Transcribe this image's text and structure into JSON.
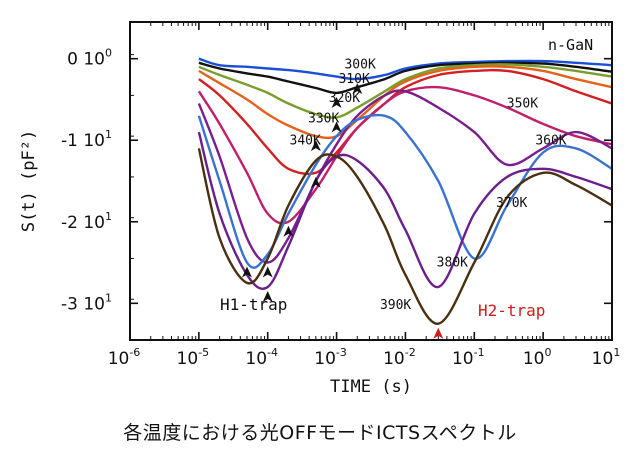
{
  "caption": "各温度における光OFFモードICTSスペクトル",
  "chart_data": {
    "type": "line",
    "xlabel": "TIME (s)",
    "ylabel": "S(t) (pF²)",
    "x_scale": "log",
    "xlim": [
      1e-06,
      10
    ],
    "ylim": [
      -3.45,
      0.45
    ],
    "grid": false,
    "x_ticks": [
      {
        "v": 1e-06,
        "base": "10",
        "exp": "-6"
      },
      {
        "v": 1e-05,
        "base": "10",
        "exp": "-5"
      },
      {
        "v": 0.0001,
        "base": "10",
        "exp": "-4"
      },
      {
        "v": 0.001,
        "base": "10",
        "exp": "-3"
      },
      {
        "v": 0.01,
        "base": "10",
        "exp": "-2"
      },
      {
        "v": 0.1,
        "base": "10",
        "exp": "-1"
      },
      {
        "v": 1,
        "base": "10",
        "exp": "0"
      },
      {
        "v": 10,
        "base": "10",
        "exp": "1"
      }
    ],
    "y_ticks": [
      {
        "v": 0,
        "text": "0 10",
        "exp": "0"
      },
      {
        "v": -1,
        "text": "-1 10",
        "exp": "1"
      },
      {
        "v": -2,
        "text": "-2 10",
        "exp": "1"
      },
      {
        "v": -3,
        "text": "-3 10",
        "exp": "1"
      }
    ],
    "annotations": {
      "material": "n-GaN",
      "trap1": {
        "text": "H1-trap",
        "color": "#111111"
      },
      "trap2": {
        "text": "H2-trap",
        "color": "#d21a1a"
      }
    },
    "series": [
      {
        "name": "300K",
        "color": "#1a4fd8",
        "label_at": [
          0.0022,
          -0.12
        ],
        "x": [
          1e-05,
          2e-05,
          5e-05,
          0.0001,
          0.0002,
          0.0005,
          0.001,
          0.002,
          0.005,
          0.01,
          0.03,
          0.1,
          0.3,
          1,
          3,
          10
        ],
        "y": [
          0.0,
          -0.08,
          -0.1,
          -0.12,
          -0.14,
          -0.18,
          -0.22,
          -0.25,
          -0.2,
          -0.12,
          -0.06,
          -0.04,
          -0.03,
          -0.03,
          -0.05,
          -0.08
        ]
      },
      {
        "name": "310K",
        "color": "#111111",
        "label_at": [
          0.0018,
          -0.3
        ],
        "x": [
          1e-05,
          2e-05,
          5e-05,
          0.0001,
          0.0002,
          0.0005,
          0.001,
          0.002,
          0.005,
          0.01,
          0.03,
          0.1,
          0.3,
          1,
          3,
          10
        ],
        "y": [
          -0.05,
          -0.12,
          -0.18,
          -0.22,
          -0.28,
          -0.36,
          -0.42,
          -0.35,
          -0.25,
          -0.15,
          -0.08,
          -0.06,
          -0.05,
          -0.06,
          -0.1,
          -0.16
        ]
      },
      {
        "name": "320K",
        "color": "#7a9e2c",
        "label_at": [
          0.0013,
          -0.53
        ],
        "x": [
          1e-05,
          2e-05,
          5e-05,
          0.0001,
          0.0002,
          0.0005,
          0.001,
          0.002,
          0.005,
          0.01,
          0.03,
          0.1,
          0.3,
          1,
          3,
          10
        ],
        "y": [
          -0.1,
          -0.2,
          -0.32,
          -0.42,
          -0.55,
          -0.68,
          -0.72,
          -0.6,
          -0.4,
          -0.25,
          -0.12,
          -0.08,
          -0.07,
          -0.1,
          -0.15,
          -0.22
        ]
      },
      {
        "name": "330K",
        "color": "#e3621a",
        "label_at": [
          0.00065,
          -0.78
        ],
        "x": [
          1e-05,
          2e-05,
          5e-05,
          0.0001,
          0.0002,
          0.0005,
          0.001,
          0.002,
          0.005,
          0.01,
          0.03,
          0.1,
          0.3,
          1,
          3,
          10
        ],
        "y": [
          -0.15,
          -0.3,
          -0.5,
          -0.68,
          -0.82,
          -0.95,
          -0.95,
          -0.75,
          -0.45,
          -0.28,
          -0.15,
          -0.1,
          -0.1,
          -0.15,
          -0.25,
          -0.35
        ]
      },
      {
        "name": "340K",
        "color": "#d42020",
        "label_at": [
          0.00035,
          -1.05
        ],
        "x": [
          1e-05,
          2e-05,
          5e-05,
          0.0001,
          0.0002,
          0.0005,
          0.001,
          0.002,
          0.005,
          0.01,
          0.03,
          0.1,
          0.3,
          1,
          3,
          10
        ],
        "y": [
          -0.25,
          -0.45,
          -0.8,
          -1.1,
          -1.35,
          -1.4,
          -1.15,
          -0.85,
          -0.55,
          -0.35,
          -0.2,
          -0.15,
          -0.15,
          -0.25,
          -0.4,
          -0.55
        ]
      },
      {
        "name": "350K",
        "color": "#c0206a",
        "label_at": [
          0.5,
          -0.6
        ],
        "x": [
          1e-05,
          2e-05,
          5e-05,
          0.0001,
          0.0002,
          0.0005,
          0.001,
          0.002,
          0.005,
          0.01,
          0.03,
          0.1,
          0.3,
          1,
          3,
          10
        ],
        "y": [
          -0.4,
          -0.8,
          -1.4,
          -1.9,
          -2.0,
          -1.6,
          -1.2,
          -0.85,
          -0.55,
          -0.4,
          -0.35,
          -0.45,
          -0.6,
          -0.8,
          -0.95,
          -1.05
        ]
      },
      {
        "name": "360K",
        "color": "#7a1e8e",
        "label_at": [
          1.3,
          -1.05
        ],
        "x": [
          1e-05,
          2e-05,
          5e-05,
          0.0001,
          0.0002,
          0.0005,
          0.001,
          0.002,
          0.005,
          0.01,
          0.03,
          0.1,
          0.3,
          1,
          3,
          10
        ],
        "y": [
          -0.55,
          -1.2,
          -2.2,
          -2.5,
          -2.2,
          -1.5,
          -1.05,
          -0.7,
          -0.45,
          -0.4,
          -0.6,
          -0.9,
          -1.3,
          -1.1,
          -0.9,
          -1.1
        ]
      },
      {
        "name": "370K",
        "color": "#3a72d0",
        "label_at": [
          0.35,
          -1.82
        ],
        "x": [
          1e-05,
          2e-05,
          5e-05,
          0.0001,
          0.0002,
          0.0005,
          0.001,
          0.002,
          0.005,
          0.01,
          0.03,
          0.1,
          0.3,
          1,
          3,
          10
        ],
        "y": [
          -0.7,
          -1.5,
          -2.5,
          -2.4,
          -1.9,
          -1.3,
          -0.95,
          -0.75,
          -0.7,
          -0.9,
          -1.5,
          -2.45,
          -1.8,
          -1.15,
          -1.1,
          -1.35
        ]
      },
      {
        "name": "380K",
        "color": "#6a1f8a",
        "label_at": [
          0.048,
          -2.55
        ],
        "x": [
          1e-05,
          2e-05,
          5e-05,
          0.0001,
          0.0002,
          0.0005,
          0.001,
          0.002,
          0.005,
          0.01,
          0.03,
          0.1,
          0.3,
          1,
          3,
          10
        ],
        "y": [
          -0.9,
          -1.9,
          -2.65,
          -2.8,
          -2.3,
          -1.5,
          -1.2,
          -1.25,
          -1.6,
          -2.1,
          -2.8,
          -1.9,
          -1.45,
          -1.35,
          -1.45,
          -1.6
        ]
      },
      {
        "name": "390K",
        "color": "#4a3010",
        "label_at": [
          0.0072,
          -3.07
        ],
        "x": [
          1e-05,
          2e-05,
          5e-05,
          0.0001,
          0.0002,
          0.0005,
          0.001,
          0.002,
          0.005,
          0.01,
          0.03,
          0.1,
          0.3,
          1,
          3,
          10
        ],
        "y": [
          -1.1,
          -2.2,
          -2.75,
          -2.45,
          -1.8,
          -1.25,
          -1.2,
          -1.45,
          -2.05,
          -2.65,
          -3.25,
          -2.5,
          -1.7,
          -1.4,
          -1.55,
          -1.8
        ]
      }
    ]
  }
}
